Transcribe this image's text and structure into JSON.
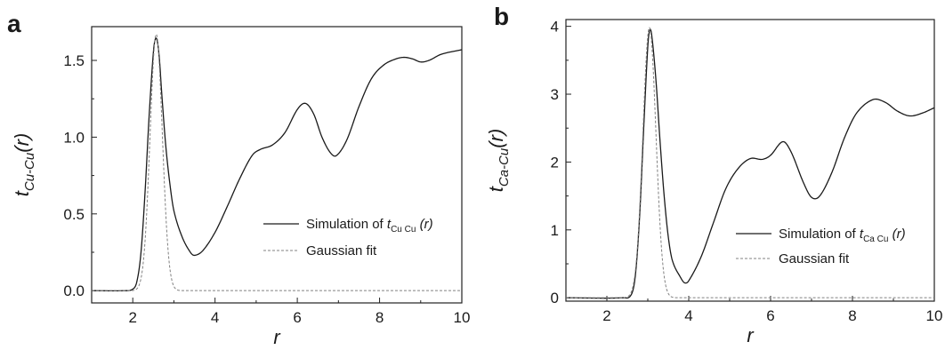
{
  "chart_data": [
    {
      "type": "line",
      "panel": "a",
      "xlabel": "r",
      "ylabel": {
        "main": "t",
        "sub": "Cu-Cu",
        "suffix": "(r)"
      },
      "xlim": [
        1,
        10
      ],
      "ylim": [
        -0.08,
        1.72
      ],
      "xticks": [
        2,
        4,
        6,
        8,
        10
      ],
      "yticks": [
        0.0,
        0.5,
        1.0,
        1.5
      ],
      "ytick_labels": [
        "0.0",
        "0.5",
        "1.0",
        "1.5"
      ],
      "legend_position": "lower-right",
      "series": [
        {
          "name": {
            "prefix": "Simulation of ",
            "main": "t",
            "sub": "Cu Cu",
            "suffix": " (r)"
          },
          "style": "solid",
          "color": "#1a1a1a",
          "x": [
            1.0,
            1.8,
            2.0,
            2.1,
            2.2,
            2.3,
            2.4,
            2.5,
            2.55,
            2.6,
            2.65,
            2.7,
            2.8,
            2.9,
            3.0,
            3.2,
            3.4,
            3.5,
            3.7,
            4.0,
            4.3,
            4.6,
            4.9,
            5.1,
            5.4,
            5.7,
            6.0,
            6.2,
            6.4,
            6.6,
            6.8,
            6.95,
            7.2,
            7.5,
            7.8,
            8.1,
            8.4,
            8.6,
            8.8,
            9.0,
            9.2,
            9.5,
            10.0
          ],
          "y": [
            0.0,
            0.0,
            0.01,
            0.06,
            0.25,
            0.65,
            1.15,
            1.55,
            1.64,
            1.62,
            1.5,
            1.3,
            0.95,
            0.7,
            0.52,
            0.35,
            0.25,
            0.23,
            0.26,
            0.38,
            0.55,
            0.73,
            0.88,
            0.92,
            0.95,
            1.03,
            1.18,
            1.22,
            1.15,
            1.0,
            0.9,
            0.88,
            0.98,
            1.2,
            1.38,
            1.47,
            1.51,
            1.52,
            1.51,
            1.49,
            1.5,
            1.54,
            1.57
          ]
        },
        {
          "name": {
            "prefix": "Gaussian fit",
            "main": "",
            "sub": "",
            "suffix": ""
          },
          "style": "dashed",
          "color": "#808080",
          "gaussian": {
            "amplitude": 1.67,
            "center": 2.57,
            "sigma": 0.15
          },
          "x_range": [
            1.0,
            10.0
          ]
        }
      ]
    },
    {
      "type": "line",
      "panel": "b",
      "xlabel": "r",
      "ylabel": {
        "main": "t",
        "sub": "Ca-Cu",
        "suffix": "(r)"
      },
      "xlim": [
        1,
        10
      ],
      "ylim": [
        -0.05,
        4.1
      ],
      "xticks": [
        2,
        4,
        6,
        8,
        10
      ],
      "yticks": [
        0,
        1,
        2,
        3,
        4
      ],
      "ytick_labels": [
        "0",
        "1",
        "2",
        "3",
        "4"
      ],
      "legend_position": "lower-right",
      "series": [
        {
          "name": {
            "prefix": "Simulation of ",
            "main": "t",
            "sub": "Ca Cu",
            "suffix": " (r)"
          },
          "style": "solid",
          "color": "#1a1a1a",
          "x": [
            1.0,
            2.4,
            2.6,
            2.7,
            2.8,
            2.9,
            3.0,
            3.05,
            3.1,
            3.2,
            3.3,
            3.4,
            3.5,
            3.6,
            3.8,
            3.9,
            4.0,
            4.3,
            4.6,
            4.9,
            5.2,
            5.5,
            5.8,
            6.0,
            6.3,
            6.5,
            6.8,
            7.0,
            7.2,
            7.5,
            7.8,
            8.1,
            8.5,
            8.8,
            9.1,
            9.4,
            9.7,
            10.0
          ],
          "y": [
            0.0,
            0.0,
            0.05,
            0.35,
            1.2,
            2.5,
            3.7,
            3.95,
            3.85,
            3.2,
            2.3,
            1.5,
            0.9,
            0.55,
            0.3,
            0.22,
            0.25,
            0.6,
            1.1,
            1.6,
            1.9,
            2.05,
            2.04,
            2.1,
            2.3,
            2.15,
            1.7,
            1.48,
            1.5,
            1.85,
            2.35,
            2.72,
            2.92,
            2.88,
            2.75,
            2.68,
            2.72,
            2.8
          ]
        },
        {
          "name": {
            "prefix": "Gaussian fit",
            "main": "",
            "sub": "",
            "suffix": ""
          },
          "style": "dashed",
          "color": "#808080",
          "gaussian": {
            "amplitude": 3.98,
            "center": 3.04,
            "sigma": 0.16
          },
          "x_range": [
            1.0,
            10.0
          ]
        }
      ]
    }
  ]
}
